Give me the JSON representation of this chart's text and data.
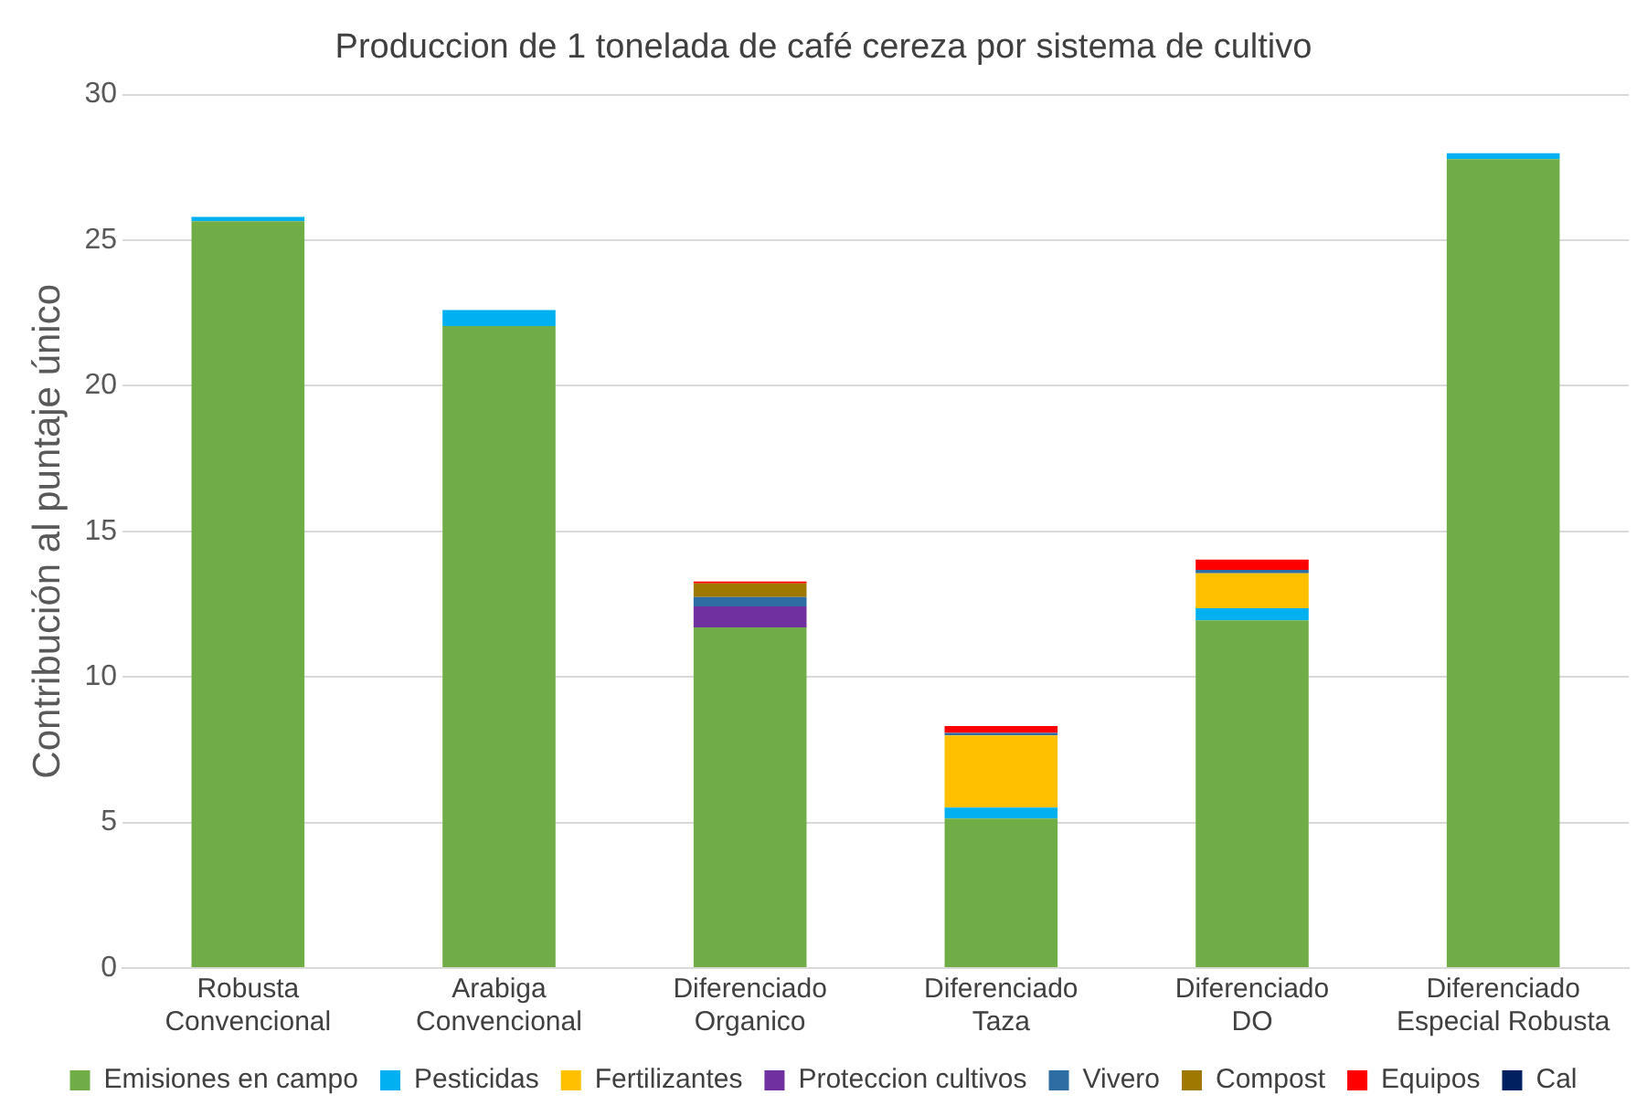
{
  "chart_data": {
    "type": "bar",
    "stacked": true,
    "title": "Produccion de 1 tonelada de café cereza por sistema de cultivo",
    "ylabel": "Contribución al puntaje único",
    "categories": [
      "Robusta Convencional",
      "Arabiga Convencional",
      "Diferenciado Organico",
      "Diferenciado Taza",
      "Diferenciado DO",
      "Diferenciado Especial Robusta"
    ],
    "series": [
      {
        "name": "Emisiones en campo",
        "color": "#70ad47",
        "values": [
          25.65,
          22.05,
          11.7,
          5.14,
          11.94,
          27.78
        ]
      },
      {
        "name": "Pesticidas",
        "color": "#00b0f0",
        "values": [
          0.15,
          0.55,
          0,
          0.37,
          0.42,
          0.21
        ]
      },
      {
        "name": "Fertilizantes",
        "color": "#ffc000",
        "values": [
          0,
          0,
          0,
          2.48,
          1.2,
          0
        ]
      },
      {
        "name": "Proteccion cultivos",
        "color": "#7030a0",
        "values": [
          0,
          0,
          0.72,
          0,
          0,
          0
        ]
      },
      {
        "name": "Vivero",
        "color": "#2e6da4",
        "values": [
          0,
          0,
          0.32,
          0.09,
          0.12,
          0
        ]
      },
      {
        "name": "Compost",
        "color": "#9e7800",
        "values": [
          0,
          0,
          0.47,
          0,
          0,
          0
        ]
      },
      {
        "name": "Equipos",
        "color": "#ff0000",
        "values": [
          0,
          0,
          0.07,
          0.23,
          0.35,
          0
        ]
      },
      {
        "name": "Cal",
        "color": "#002060",
        "values": [
          0,
          0,
          0,
          0,
          0,
          0
        ]
      }
    ],
    "ylim": [
      0,
      30
    ],
    "yticks": [
      0,
      5,
      10,
      15,
      20,
      25,
      30
    ],
    "grid": "y",
    "legend": "bottom"
  }
}
